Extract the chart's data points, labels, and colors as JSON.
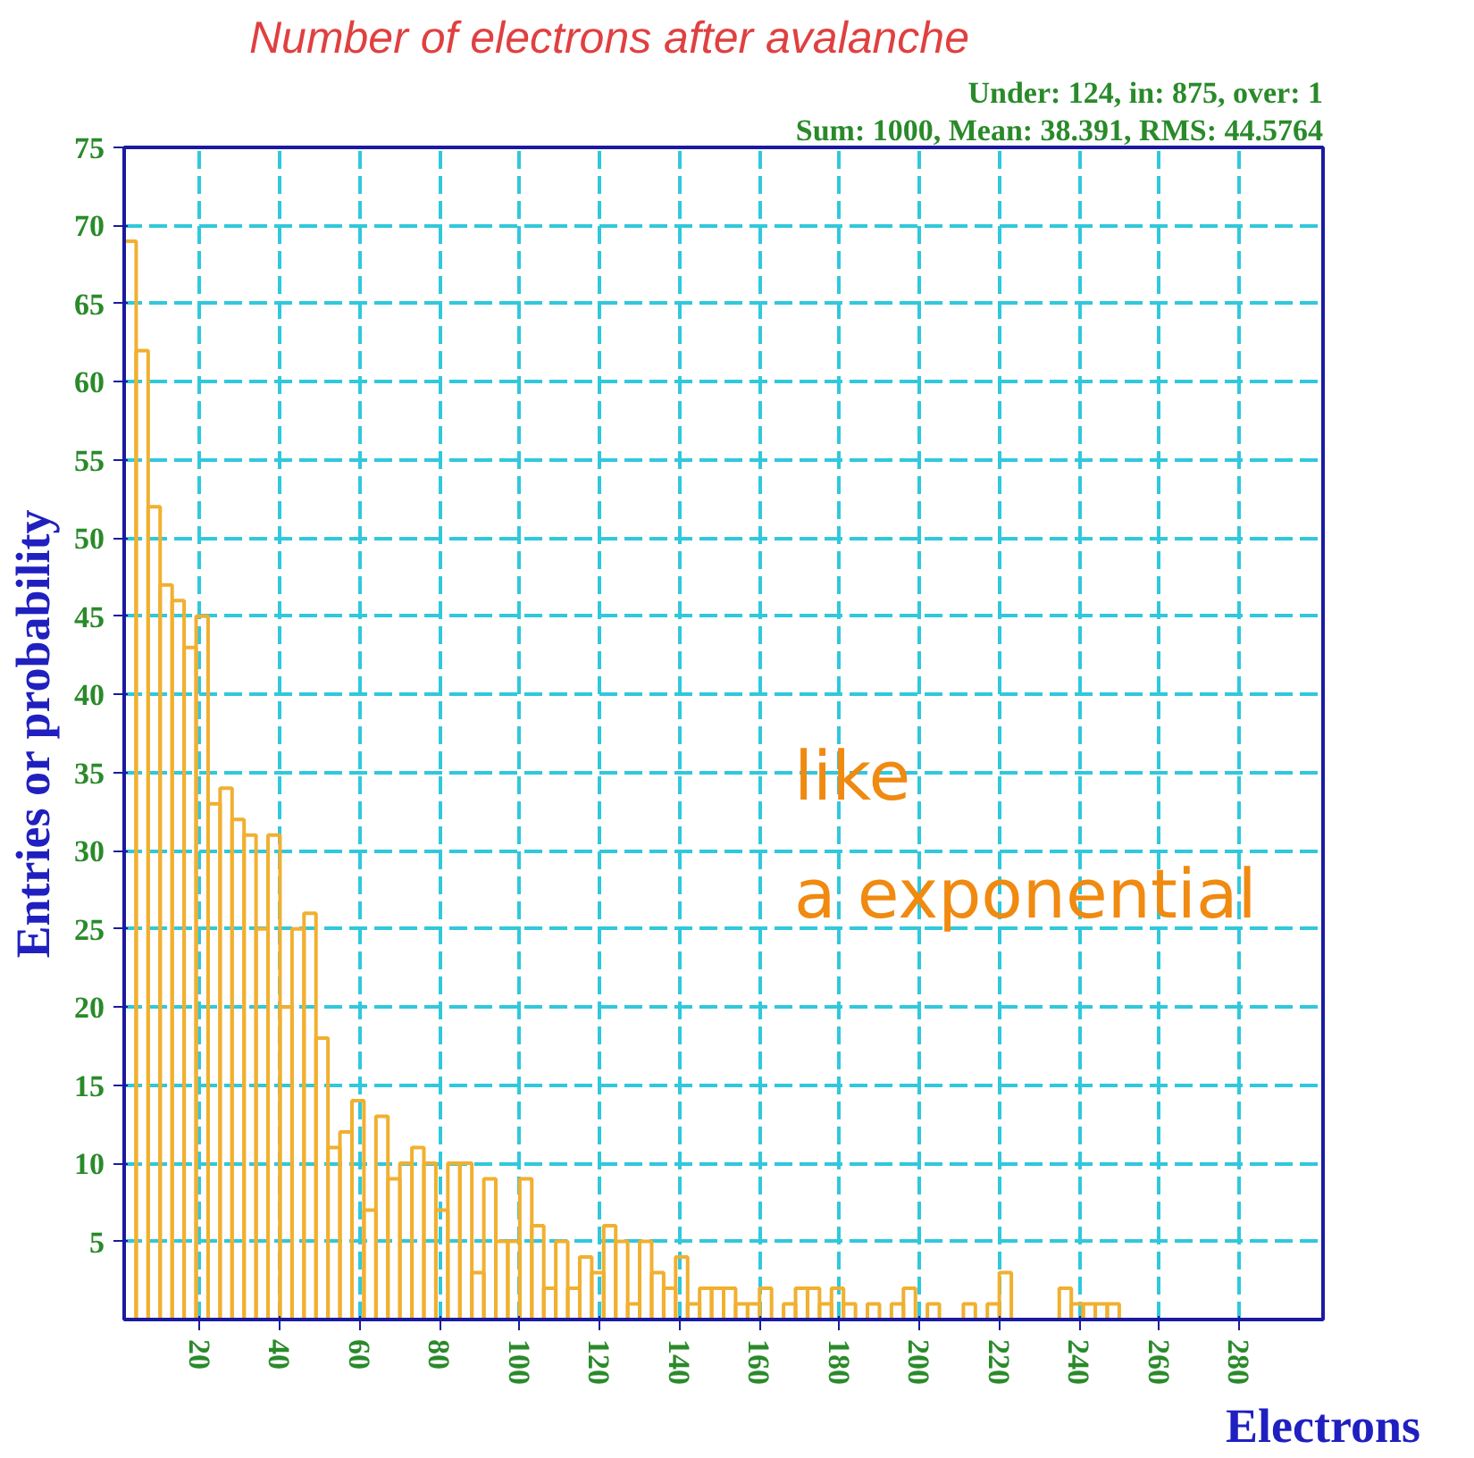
{
  "chart_data": {
    "type": "histogram",
    "title": "Number of electrons after avalanche",
    "xlabel": "Electrons",
    "ylabel": "Entries or probability",
    "annotations": [
      "Under: 124, in: 875, over: 1",
      "Sum: 1000, Mean: 38.391, RMS: 44.5764",
      "like",
      "a exponential"
    ],
    "bins": [
      1,
      4,
      7,
      10,
      13,
      16,
      19,
      22,
      25,
      28,
      31,
      34,
      37,
      40,
      43,
      46,
      49,
      52,
      55,
      58,
      61,
      64,
      67,
      70,
      73,
      76,
      79,
      82,
      85,
      88,
      91,
      94,
      97,
      100,
      103,
      106,
      109,
      112,
      115,
      118,
      121,
      124,
      127,
      130,
      133,
      136,
      139,
      142,
      145,
      148,
      151,
      154,
      157,
      160,
      163,
      166,
      169,
      172,
      175,
      178,
      181,
      184,
      187,
      190,
      193,
      196,
      199,
      202,
      205,
      208,
      211,
      214,
      217,
      220,
      223,
      226,
      229,
      232,
      235,
      238,
      241,
      244,
      247,
      250,
      253,
      256,
      259,
      262,
      265,
      268,
      271,
      274,
      277,
      280,
      283,
      286,
      289,
      292,
      295,
      298,
      301
    ],
    "values": [
      69,
      62,
      52,
      47,
      46,
      43,
      45,
      33,
      34,
      32,
      31,
      25,
      31,
      20,
      25,
      26,
      18,
      11,
      12,
      14,
      7,
      13,
      9,
      10,
      11,
      10,
      7,
      10,
      10,
      3,
      9,
      5,
      5,
      9,
      6,
      2,
      5,
      2,
      4,
      3,
      6,
      5,
      1,
      5,
      3,
      2,
      4,
      1,
      2,
      2,
      2,
      1,
      1,
      2,
      0,
      1,
      2,
      2,
      1,
      2,
      1,
      0,
      1,
      0,
      1,
      2,
      0,
      1,
      0,
      0,
      1,
      0,
      1,
      3,
      0,
      0,
      0,
      0,
      2,
      1,
      1,
      1,
      1,
      0,
      0,
      0,
      0,
      0,
      0,
      0,
      0,
      0,
      0,
      0,
      0,
      0,
      0,
      0,
      0,
      0
    ],
    "color": "#f0b030",
    "xlim": [
      1,
      301
    ],
    "ylim": [
      0,
      75
    ],
    "xticks": [
      20,
      40,
      60,
      80,
      100,
      120,
      140,
      160,
      180,
      200,
      220,
      240,
      260,
      280
    ],
    "yticks": [
      5,
      10,
      15,
      20,
      25,
      30,
      35,
      40,
      45,
      50,
      55,
      60,
      65,
      70,
      75
    ],
    "grid": true
  }
}
